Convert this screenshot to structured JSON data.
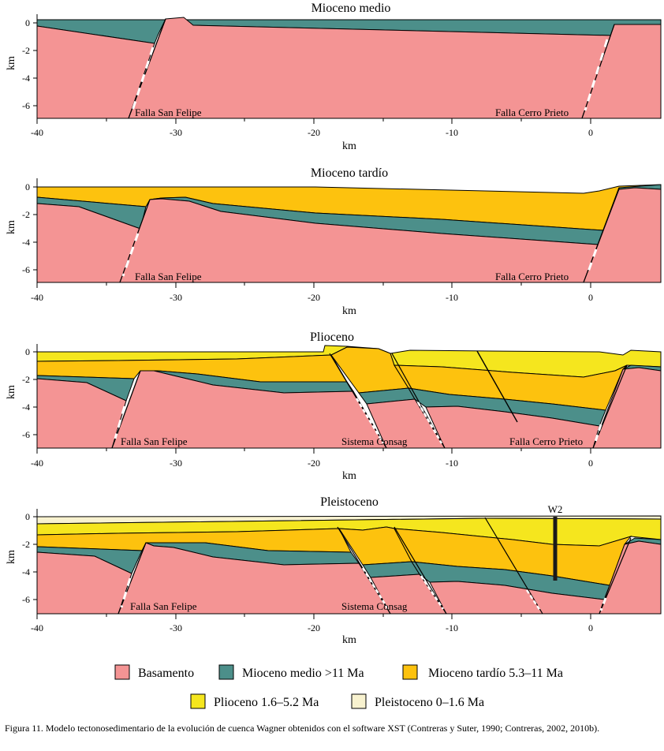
{
  "panels": [
    {
      "title": "Mioceno medio",
      "y_ticks": [
        "0",
        "-2",
        "-4",
        "-6"
      ],
      "x_ticks": [
        "-40",
        "-30",
        "-20",
        "-10",
        "0"
      ],
      "x_label": "km",
      "y_label": "km",
      "fault_labels": [
        "Falla San Felipe",
        "Falla Cerro Prieto"
      ]
    },
    {
      "title": "Mioceno tardío",
      "y_ticks": [
        "0",
        "-2",
        "-4",
        "-6"
      ],
      "x_ticks": [
        "-40",
        "-30",
        "-20",
        "-10",
        "0"
      ],
      "x_label": "km",
      "y_label": "km",
      "fault_labels": [
        "Falla San Felipe",
        "Falla Cerro Prieto"
      ]
    },
    {
      "title": "Plioceno",
      "y_ticks": [
        "0",
        "-2",
        "-4",
        "-6"
      ],
      "x_ticks": [
        "-40",
        "-30",
        "-20",
        "-10",
        "0"
      ],
      "x_label": "km",
      "y_label": "km",
      "fault_labels": [
        "Falla San Felipe",
        "Sistema Consag",
        "Falla Cerro Prieto"
      ]
    },
    {
      "title": "Pleistoceno",
      "y_ticks": [
        "0",
        "-2",
        "-4",
        "-6"
      ],
      "x_ticks": [
        "-40",
        "-30",
        "-20",
        "-10",
        "0"
      ],
      "x_label": "km",
      "y_label": "km",
      "fault_labels": [
        "Falla San Felipe",
        "Sistema Consag"
      ],
      "well_label": "W2"
    }
  ],
  "legend": [
    {
      "label": "Basamento",
      "color": "#f49494"
    },
    {
      "label": "Mioceno medio >11 Ma",
      "color": "#4c8f8a"
    },
    {
      "label": "Mioceno tardío 5.3–11 Ma",
      "color": "#fdc20e"
    },
    {
      "label": "Plioceno 1.6–5.2 Ma",
      "color": "#f5e61e"
    },
    {
      "label": "Pleistoceno 0–1.6 Ma",
      "color": "#f8f2cf"
    }
  ],
  "caption": "Figura 11. Modelo tectonosedimentario de la evolución de cuenca Wagner obtenidos con el software XST (Contreras y Suter, 1990; Contreras, 2002, 2010b)."
}
